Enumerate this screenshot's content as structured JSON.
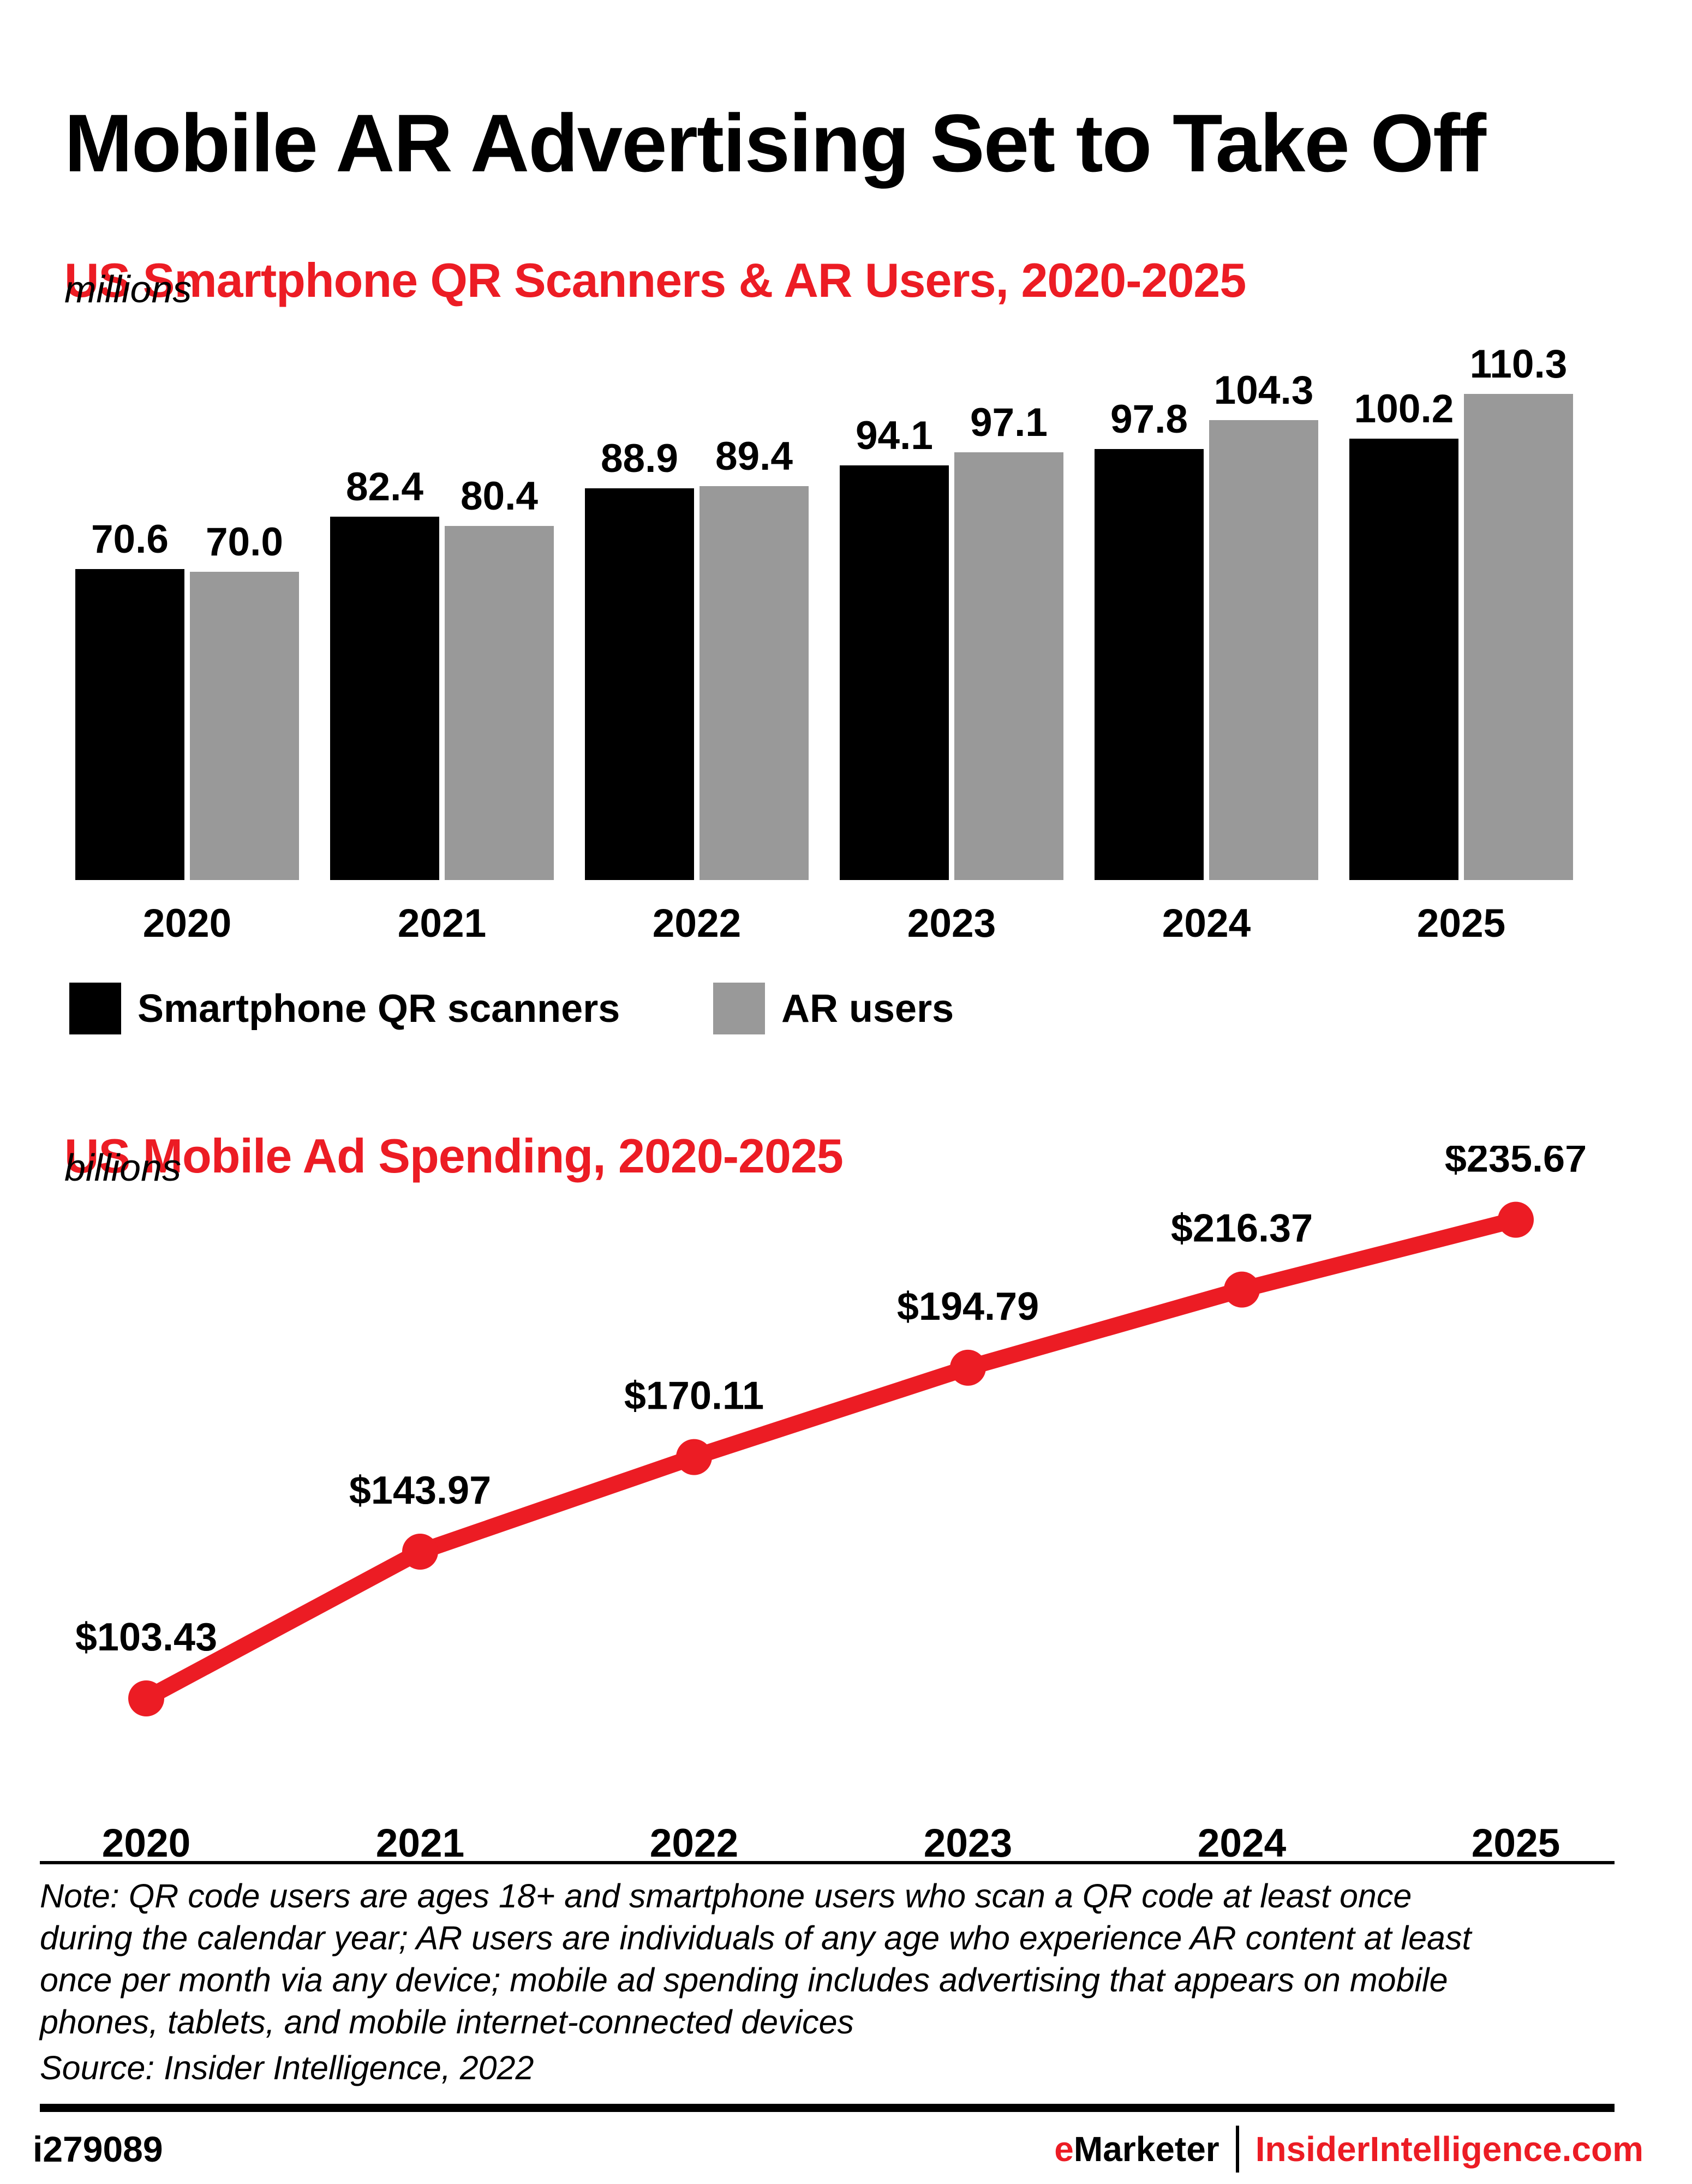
{
  "page_title": "Mobile AR Advertising Set to Take Off",
  "chart_data": [
    {
      "type": "bar",
      "title": "US Smartphone QR Scanners & AR Users, 2020-2025",
      "unit_label": "millions",
      "categories": [
        "2020",
        "2021",
        "2022",
        "2023",
        "2024",
        "2025"
      ],
      "series": [
        {
          "name": "Smartphone QR scanners",
          "color": "#000000",
          "values": [
            70.6,
            82.4,
            88.9,
            94.1,
            97.8,
            100.2
          ]
        },
        {
          "name": "AR users",
          "color": "#999999",
          "values": [
            70.0,
            80.4,
            89.4,
            97.1,
            104.3,
            110.3
          ]
        }
      ],
      "value_labels": "one_decimal",
      "ylim": [
        0,
        112
      ],
      "grid": false,
      "legend_position": "bottom"
    },
    {
      "type": "line",
      "title": "US Mobile Ad Spending, 2020-2025",
      "unit_label": "billions",
      "x": [
        "2020",
        "2021",
        "2022",
        "2023",
        "2024",
        "2025"
      ],
      "values": [
        103.43,
        143.97,
        170.11,
        194.79,
        216.37,
        235.67
      ],
      "value_labels": "usd_two_decimals",
      "color": "#EC1C24",
      "ylim": [
        60,
        260
      ],
      "grid": false,
      "legend_position": "none"
    }
  ],
  "note": {
    "text": "Note: QR code users are ages 18+ and smartphone users who scan a QR code at least once\nduring the calendar year; AR users are individuals of any age who experience AR content at least\nonce per month via any device; mobile ad spending includes advertising that appears on mobile\nphones, tablets, and mobile internet-connected devices"
  },
  "source": "Source: Insider Intelligence, 2022",
  "footer": {
    "chart_id": "i279089",
    "brand_e": "e",
    "brand_rest": "Marketer",
    "separator": "|",
    "site": "InsiderIntelligence.com"
  },
  "colors": {
    "accent_red": "#EC1C24",
    "bar_black": "#000000",
    "bar_gray": "#999999"
  }
}
